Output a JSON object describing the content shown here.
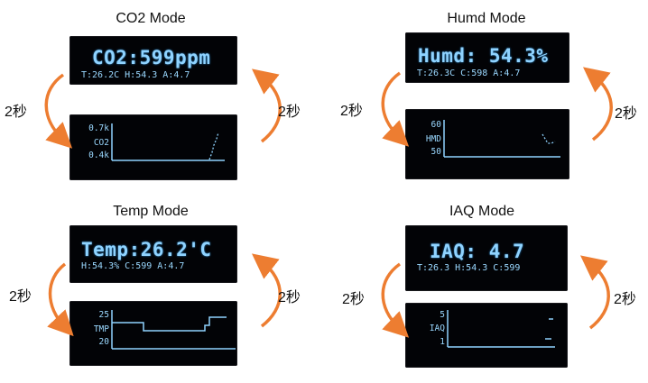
{
  "modes": [
    {
      "id": "co2",
      "title": "CO2 Mode",
      "main_text": "CO2:599ppm",
      "sub_text": "T:26.2C H:54.3 A:4.7",
      "graph_top_label": "0.7k",
      "graph_mid_label": "CO2",
      "graph_bottom_label": "0.4k",
      "interval_left": "2秒",
      "interval_right": "2秒"
    },
    {
      "id": "humd",
      "title": "Humd Mode",
      "main_text": "Humd: 54.3%",
      "sub_text": "T:26.3C C:598 A:4.7",
      "graph_top_label": "60",
      "graph_mid_label": "HMD",
      "graph_bottom_label": "50",
      "interval_left": "2秒",
      "interval_right": "2秒"
    },
    {
      "id": "temp",
      "title": "Temp Mode",
      "main_text": "Temp:26.2'C",
      "sub_text": "H:54.3% C:599 A:4.7",
      "graph_top_label": "25",
      "graph_mid_label": "TMP",
      "graph_bottom_label": "20",
      "interval_left": "2秒",
      "interval_right": "2秒"
    },
    {
      "id": "iaq",
      "title": "IAQ Mode",
      "main_text": "IAQ: 4.7",
      "sub_text": "T:26.3 H:54.3 C:599",
      "graph_top_label": "5",
      "graph_mid_label": "IAQ",
      "graph_bottom_label": "1",
      "interval_left": "2秒",
      "interval_right": "2秒"
    }
  ],
  "colors": {
    "arrow": "#ED7D31",
    "oled_text": "#8FD3FF",
    "oled_background": "#020306"
  }
}
